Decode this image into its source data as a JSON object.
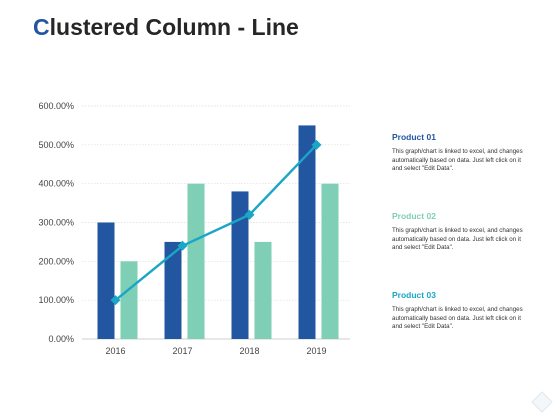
{
  "title": {
    "first_letter": "C",
    "rest": "lustered Column - Line"
  },
  "colors": {
    "title_accent": "#2356a0",
    "series_1": "#2356a0",
    "series_2": "#7ecfb6",
    "line": "#1aa6c6",
    "legend_1": "#2356a0",
    "legend_2": "#7ecfb6",
    "legend_3": "#1aa6c6"
  },
  "legend": [
    {
      "title": "Product 01",
      "description": "This graph/chart is linked to excel, and changes automatically based on data. Just left click on it and select \"Edit Data\"."
    },
    {
      "title": "Product 02",
      "description": "This graph/chart is linked to excel, and changes automatically based on data. Just left click on it and select \"Edit Data\"."
    },
    {
      "title": "Product 03",
      "description": "This graph/chart is linked to excel, and changes automatically based on data. Just left click on it and select \"Edit Data\"."
    }
  ],
  "chart_data": {
    "type": "bar",
    "categories": [
      "2016",
      "2017",
      "2018",
      "2019"
    ],
    "series": [
      {
        "values": [
          300,
          250,
          380,
          550
        ],
        "kind": "bar"
      },
      {
        "values": [
          200,
          400,
          250,
          400
        ],
        "kind": "bar"
      },
      {
        "values": [
          100,
          240,
          320,
          500
        ],
        "kind": "line"
      }
    ],
    "y_ticks": [
      "0.00%",
      "100.00%",
      "200.00%",
      "300.00%",
      "400.00%",
      "500.00%",
      "600.00%"
    ],
    "ylim": [
      0,
      600
    ],
    "grid": true,
    "legend_position": "right"
  },
  "icons": {
    "corner": "diamond-decoration-icon"
  }
}
